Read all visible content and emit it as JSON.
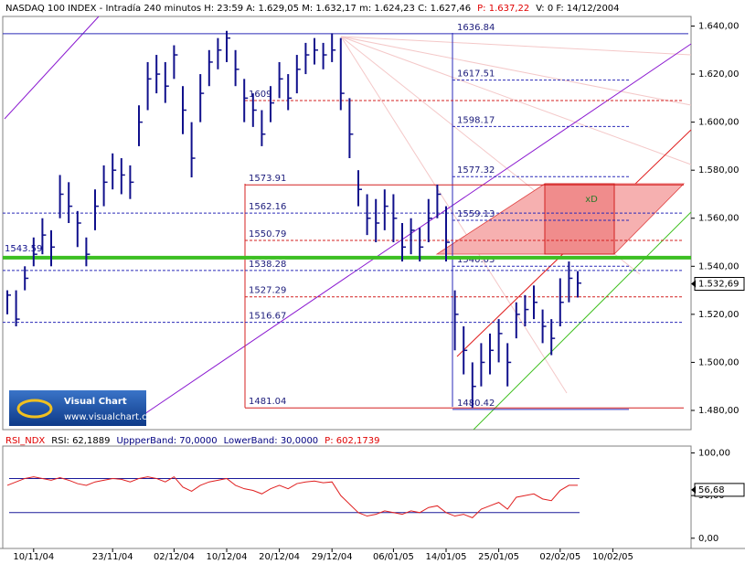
{
  "chart_data": [
    {
      "type": "ohlc",
      "header": [
        {
          "text": "NASDAQ 100 INDEX - Intradía 240 minutos H: 23:59  A: 1.629,05  M: 1.632,17  m: 1.624,23  C: 1.627,46",
          "color": "#000000"
        },
        {
          "text": "P: 1.637,22",
          "color": "#e00000"
        },
        {
          "text": "V: 0  F: 14/12/2004",
          "color": "#000000"
        }
      ],
      "categories": [
        null,
        null,
        null,
        "10/11/04",
        null,
        null,
        null,
        null,
        null,
        null,
        null,
        null,
        "23/11/04",
        null,
        null,
        null,
        null,
        null,
        null,
        "02/12/04",
        null,
        null,
        null,
        null,
        null,
        "10/12/04",
        null,
        null,
        null,
        null,
        null,
        "20/12/04",
        null,
        null,
        null,
        null,
        null,
        "29/12/04",
        null,
        null,
        null,
        null,
        null,
        null,
        "06/01/05",
        null,
        null,
        null,
        null,
        null,
        "14/01/05",
        null,
        null,
        null,
        null,
        null,
        "25/01/05",
        null,
        null,
        null,
        null,
        null,
        null,
        "02/02/05",
        null,
        null,
        null,
        null,
        null,
        "10/02/05",
        null,
        null
      ],
      "high": [
        1530,
        1530,
        1540,
        1552,
        1560,
        1555,
        1578,
        1575,
        1563,
        1552,
        1572,
        1582,
        1587,
        1585,
        1582,
        1607,
        1625,
        1628,
        1625,
        1632,
        1615,
        1600,
        1620,
        1630,
        1635,
        1638,
        1630,
        1618,
        1612,
        1605,
        1615,
        1625,
        1620,
        1628,
        1633,
        1635,
        1633,
        1637,
        1635,
        1610,
        1580,
        1570,
        1568,
        1572,
        1570,
        1558,
        1560,
        1556,
        1568,
        1574,
        1565,
        1530,
        1515,
        1500,
        1508,
        1512,
        1518,
        1508,
        1525,
        1528,
        1532,
        1522,
        1518,
        1535,
        1542,
        1538,
        null,
        null,
        null,
        null,
        null,
        null
      ],
      "low": [
        1520,
        1515,
        1530,
        1540,
        1545,
        1540,
        1560,
        1558,
        1548,
        1540,
        1555,
        1565,
        1572,
        1570,
        1568,
        1590,
        1605,
        1612,
        1608,
        1618,
        1595,
        1577,
        1600,
        1615,
        1622,
        1625,
        1615,
        1600,
        1598,
        1590,
        1600,
        1610,
        1605,
        1612,
        1620,
        1624,
        1622,
        1625,
        1605,
        1585,
        1565,
        1553,
        1550,
        1555,
        1550,
        1542,
        1545,
        1542,
        1550,
        1560,
        1542,
        1505,
        1495,
        1481,
        1490,
        1495,
        1500,
        1490,
        1510,
        1515,
        1518,
        1508,
        1503,
        1515,
        1525,
        1527,
        null,
        null,
        null,
        null,
        null,
        null
      ],
      "close": [
        1528,
        1518,
        1535,
        1545,
        1553,
        1548,
        1570,
        1565,
        1558,
        1545,
        1565,
        1575,
        1580,
        1578,
        1575,
        1600,
        1618,
        1620,
        1615,
        1628,
        1605,
        1585,
        1612,
        1625,
        1630,
        1635,
        1622,
        1610,
        1605,
        1595,
        1608,
        1618,
        1610,
        1622,
        1628,
        1630,
        1628,
        1630,
        1612,
        1595,
        1572,
        1560,
        1558,
        1565,
        1560,
        1548,
        1555,
        1548,
        1560,
        1570,
        1550,
        1520,
        1505,
        1490,
        1500,
        1505,
        1512,
        1500,
        1520,
        1522,
        1525,
        1515,
        1510,
        1525,
        1535,
        1533,
        null,
        null,
        null,
        null,
        null,
        null
      ],
      "color": "#10108c",
      "ylim": [
        1472,
        1644
      ],
      "yticks": [
        {
          "value": 1480,
          "label": "1.480,00"
        },
        {
          "value": 1500,
          "label": "1.500,00"
        },
        {
          "value": 1520,
          "label": "1.520,00"
        },
        {
          "value": 1540,
          "label": "1.540,00"
        },
        {
          "value": 1560,
          "label": "1.560,00"
        },
        {
          "value": 1580,
          "label": "1.580,00"
        },
        {
          "value": 1600,
          "label": "1.600,00"
        },
        {
          "value": 1620,
          "label": "1.620,00"
        },
        {
          "value": 1640,
          "label": "1.640,00"
        }
      ],
      "last": {
        "value": 1532.69,
        "label": "1.532,69"
      },
      "fib_levels": {
        "color": "#2a2ab8",
        "values": [
          1636.84,
          1617.51,
          1598.17,
          1577.32,
          1559.13,
          1540.03,
          1480.42
        ]
      },
      "box_levels": {
        "color": "#d42020",
        "values": [
          1573.91,
          1562.16,
          1550.79,
          1538.28,
          1527.29,
          1516.67,
          1481.04
        ]
      },
      "extra_level": 1609,
      "support": {
        "value": 1543.59,
        "color": "#3cbf22"
      },
      "annotation": "xD",
      "logo": {
        "title": "Visual Chart",
        "url": "www.visualchart.com"
      }
    },
    {
      "type": "line",
      "header": [
        {
          "text": "RSI_NDX",
          "color": "#e00000"
        },
        {
          "text": "RSI: 62,1889",
          "color": "#000000"
        },
        {
          "text": "UppperBand: 70,0000",
          "color": "#000080"
        },
        {
          "text": "LowerBand: 30,0000",
          "color": "#000080"
        },
        {
          "text": "P: 602,1739",
          "color": "#e00000"
        }
      ],
      "values": [
        62,
        66,
        70,
        72,
        70,
        68,
        71,
        68,
        64,
        62,
        66,
        68,
        70,
        69,
        66,
        70,
        72,
        70,
        66,
        72,
        60,
        55,
        62,
        66,
        68,
        70,
        62,
        58,
        56,
        52,
        58,
        62,
        58,
        64,
        66,
        67,
        65,
        66,
        50,
        40,
        30,
        26,
        28,
        32,
        30,
        28,
        32,
        30,
        36,
        38,
        30,
        26,
        28,
        24,
        34,
        38,
        42,
        34,
        48,
        50,
        52,
        46,
        44,
        56,
        62,
        62,
        null,
        null,
        null,
        null,
        null,
        null
      ],
      "color": "#e02020",
      "bands": {
        "color": "#1a1a9a",
        "values": [
          70,
          30
        ]
      },
      "ylim": [
        -12,
        108
      ],
      "yticks": [
        {
          "value": 0,
          "label": "0,00"
        },
        {
          "value": 50,
          "label": "50,00"
        },
        {
          "value": 100,
          "label": "100,00"
        }
      ],
      "last": {
        "value": 56.68,
        "label": "56,68"
      }
    }
  ]
}
